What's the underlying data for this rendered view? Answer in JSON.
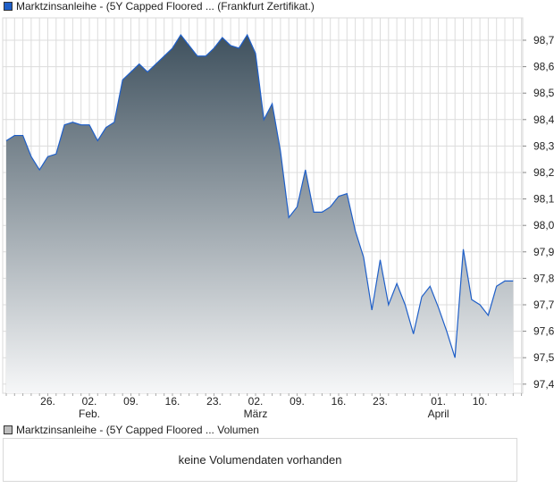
{
  "legend_main": "Marktzinsanleihe - (5Y Capped Floored ... (Frankfurt Zertifikat.)",
  "legend_volume": "Marktzinsanleihe - (5Y Capped Floored ... Volumen",
  "volume_message": "keine Volumendaten vorhanden",
  "colors": {
    "line": "#1f5fc8",
    "fill_top": "#3f515e",
    "fill_bottom": "#f6f7f8",
    "grid": "#dcdcdc",
    "volume_swatch": "#bdbdbd"
  },
  "chart_data": {
    "type": "area",
    "ylim": [
      97.37,
      98.79
    ],
    "yticks": [
      97.4,
      97.5,
      97.6,
      97.7,
      97.8,
      97.9,
      98.0,
      98.1,
      98.2,
      98.3,
      98.4,
      98.5,
      98.6,
      98.7
    ],
    "ytick_labels": [
      "97,4",
      "97,5",
      "97,6",
      "97,7",
      "97,8",
      "97,9",
      "98,0",
      "98,1",
      "98,2",
      "98,3",
      "98,4",
      "98,5",
      "98,6",
      "98,7"
    ],
    "xticks": [
      {
        "index": 5,
        "label": "26.",
        "month": ""
      },
      {
        "index": 10,
        "label": "02.",
        "month": "Feb."
      },
      {
        "index": 15,
        "label": "09.",
        "month": ""
      },
      {
        "index": 20,
        "label": "16.",
        "month": ""
      },
      {
        "index": 25,
        "label": "23.",
        "month": ""
      },
      {
        "index": 30,
        "label": "02.",
        "month": "März"
      },
      {
        "index": 35,
        "label": "09.",
        "month": ""
      },
      {
        "index": 40,
        "label": "16.",
        "month": ""
      },
      {
        "index": 45,
        "label": "23.",
        "month": ""
      },
      {
        "index": 52,
        "label": "01.",
        "month": "April"
      },
      {
        "index": 57,
        "label": "10.",
        "month": ""
      }
    ],
    "values": [
      98.32,
      98.34,
      98.34,
      98.26,
      98.21,
      98.26,
      98.27,
      98.38,
      98.39,
      98.38,
      98.38,
      98.32,
      98.37,
      98.39,
      98.55,
      98.58,
      98.61,
      98.58,
      98.61,
      98.64,
      98.67,
      98.72,
      98.68,
      98.64,
      98.64,
      98.67,
      98.71,
      98.68,
      98.67,
      98.72,
      98.65,
      98.4,
      98.46,
      98.28,
      98.03,
      98.07,
      98.21,
      98.05,
      98.05,
      98.07,
      98.11,
      98.12,
      97.98,
      97.88,
      97.68,
      97.87,
      97.7,
      97.78,
      97.7,
      97.59,
      97.73,
      97.77,
      97.69,
      97.6,
      97.5,
      97.91,
      97.72,
      97.7,
      97.66,
      97.77,
      97.79,
      97.79
    ]
  }
}
